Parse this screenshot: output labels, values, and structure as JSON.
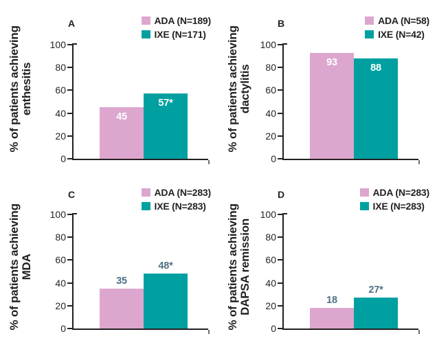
{
  "colors": {
    "ada_pink": "#dca6cf",
    "ixe_teal": "#00a0a1",
    "axis": "#231f20",
    "text_dark": "#231f20",
    "bar_label_inside": "#ffffff",
    "bar_label_above": "#4f7183",
    "axis_end_cap": "#6d6e71"
  },
  "chart_data": [
    {
      "type": "bar",
      "panel_label": "A",
      "ylabel": "% of patients achieving enthesitis",
      "ylabel_lines": [
        "% of patients achieving",
        "enthesitis"
      ],
      "legend": [
        {
          "label": "ADA (N=189)",
          "series": "ADA",
          "color": "#dca6cf"
        },
        {
          "label": "IXE (N=171)",
          "series": "IXE",
          "color": "#00a0a1"
        }
      ],
      "categories": [
        "ADA",
        "IXE"
      ],
      "values": [
        45,
        57
      ],
      "bar_labels": [
        "45",
        "57*"
      ],
      "bar_label_position": "inside",
      "ylim": [
        0,
        100
      ],
      "yticks": [
        0,
        20,
        40,
        60,
        80,
        100
      ],
      "grid": false,
      "legend_position": "top-right"
    },
    {
      "type": "bar",
      "panel_label": "B",
      "ylabel": "% of patients achieving dactylitis",
      "ylabel_lines": [
        "% of patients achieving",
        "dactylitis"
      ],
      "legend": [
        {
          "label": "ADA (N=58)",
          "series": "ADA",
          "color": "#dca6cf"
        },
        {
          "label": "IXE (N=42)",
          "series": "IXE",
          "color": "#00a0a1"
        }
      ],
      "categories": [
        "ADA",
        "IXE"
      ],
      "values": [
        93,
        88
      ],
      "bar_labels": [
        "93",
        "88"
      ],
      "bar_label_position": "inside",
      "ylim": [
        0,
        100
      ],
      "yticks": [
        0,
        20,
        40,
        60,
        80,
        100
      ],
      "grid": false,
      "legend_position": "top-right"
    },
    {
      "type": "bar",
      "panel_label": "C",
      "ylabel": "% of patients achieving MDA",
      "ylabel_lines": [
        "% of patients achieving",
        "MDA"
      ],
      "legend": [
        {
          "label": "ADA (N=283)",
          "series": "ADA",
          "color": "#dca6cf"
        },
        {
          "label": "IXE (N=283)",
          "series": "IXE",
          "color": "#00a0a1"
        }
      ],
      "categories": [
        "ADA",
        "IXE"
      ],
      "values": [
        35,
        48
      ],
      "bar_labels": [
        "35",
        "48*"
      ],
      "bar_label_position": "above",
      "ylim": [
        0,
        100
      ],
      "yticks": [
        0,
        20,
        40,
        60,
        80,
        100
      ],
      "grid": false,
      "legend_position": "top-right"
    },
    {
      "type": "bar",
      "panel_label": "D",
      "ylabel": "% of patients achieving DAPSA remission",
      "ylabel_lines": [
        "% of patients achieving",
        "DAPSA remission"
      ],
      "legend": [
        {
          "label": "ADA (N=283)",
          "series": "ADA",
          "color": "#dca6cf"
        },
        {
          "label": "IXE (N=283)",
          "series": "IXE",
          "color": "#00a0a1"
        }
      ],
      "categories": [
        "ADA",
        "IXE"
      ],
      "values": [
        18,
        27
      ],
      "bar_labels": [
        "18",
        "27*"
      ],
      "bar_label_position": "above",
      "ylim": [
        0,
        100
      ],
      "yticks": [
        0,
        20,
        40,
        60,
        80,
        100
      ],
      "grid": false,
      "legend_position": "top-right"
    }
  ]
}
